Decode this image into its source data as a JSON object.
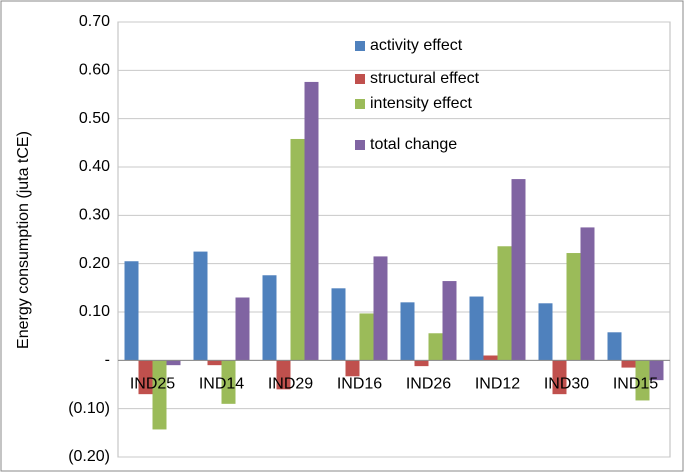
{
  "chart_data": {
    "type": "bar",
    "y_label": "Energy consumption (juta tCE)",
    "categories": [
      "IND25",
      "IND14",
      "IND29",
      "IND16",
      "IND26",
      "IND12",
      "IND30",
      "IND15"
    ],
    "series": [
      {
        "name": "activity effect",
        "color": "#4f81bd",
        "values": [
          0.205,
          0.225,
          0.176,
          0.149,
          0.12,
          0.132,
          0.118,
          0.058
        ]
      },
      {
        "name": "structural effect",
        "color": "#c0504d",
        "values": [
          -0.07,
          -0.01,
          -0.06,
          -0.033,
          -0.012,
          0.01,
          -0.07,
          -0.015
        ]
      },
      {
        "name": "intensity effect",
        "color": "#9bbb59",
        "values": [
          -0.143,
          -0.09,
          0.458,
          0.097,
          0.056,
          0.236,
          0.222,
          -0.083
        ]
      },
      {
        "name": "total change",
        "color": "#8064a2",
        "values": [
          -0.01,
          0.13,
          0.576,
          0.215,
          0.164,
          0.375,
          0.275,
          -0.041
        ]
      }
    ],
    "ylim": [
      -0.2,
      0.7
    ],
    "yticks": [
      {
        "value": -0.2,
        "label": "(0.20)"
      },
      {
        "value": -0.1,
        "label": "(0.10)"
      },
      {
        "value": 0,
        "label": "-"
      },
      {
        "value": 0.1,
        "label": "0.10"
      },
      {
        "value": 0.2,
        "label": "0.20"
      },
      {
        "value": 0.3,
        "label": "0.30"
      },
      {
        "value": 0.4,
        "label": "0.40"
      },
      {
        "value": 0.5,
        "label": "0.50"
      },
      {
        "value": 0.6,
        "label": "0.60"
      },
      {
        "value": 0.7,
        "label": "0.70"
      }
    ],
    "grid": true
  }
}
